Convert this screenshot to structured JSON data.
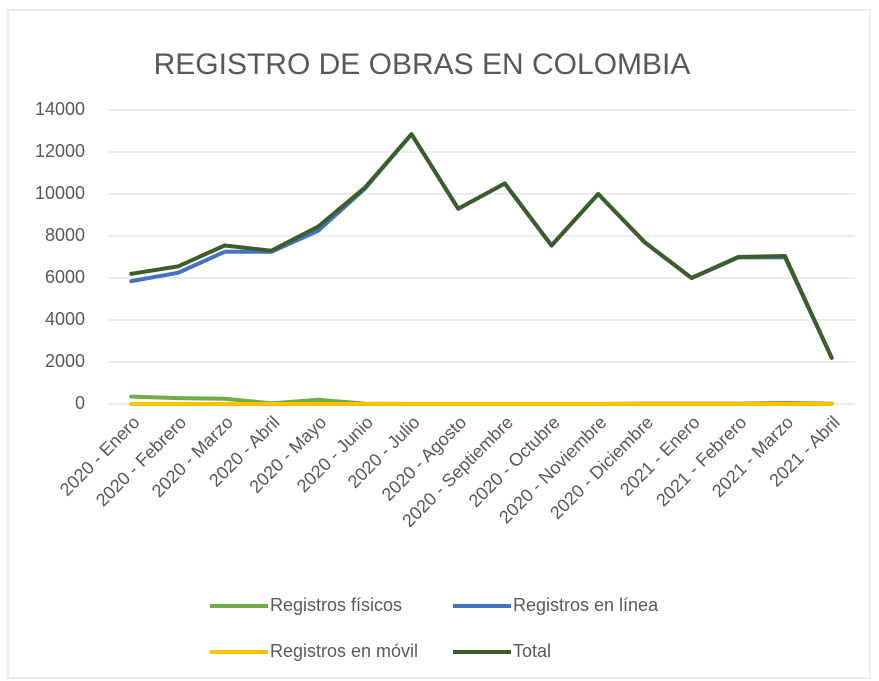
{
  "chart_data": {
    "type": "line",
    "title": "REGISTRO DE OBRAS EN COLOMBIA",
    "categories": [
      "2020 - Enero",
      "2020 - Febrero",
      "2020 - Marzo",
      "2020 - Abril",
      "2020 - Mayo",
      "2020 - Junio",
      "2020 - Julio",
      "2020 - Agosto",
      "2020 - Septiembre",
      "2020 - Octubre",
      "2020 - Noviembre",
      "2020 - Diciembre",
      "2021 - Enero",
      "2021 - Febrero",
      "2021 - Marzo",
      "2021 - Abril"
    ],
    "series": [
      {
        "name": "Registros físicos",
        "color": "#70ad47",
        "values": [
          350,
          280,
          250,
          30,
          200,
          20,
          0,
          0,
          0,
          0,
          0,
          20,
          20,
          20,
          50,
          20
        ]
      },
      {
        "name": "Registros en línea",
        "color": "#4472c4",
        "values": [
          5850,
          6250,
          7250,
          7250,
          8250,
          10250,
          12850,
          9300,
          10500,
          7550,
          10000,
          7680,
          6000,
          6980,
          6980,
          2200
        ]
      },
      {
        "name": "Registros en móvil",
        "color": "#ffc000",
        "values": [
          0,
          0,
          0,
          0,
          0,
          0,
          0,
          0,
          0,
          0,
          0,
          0,
          0,
          0,
          0,
          0
        ]
      },
      {
        "name": "Total",
        "color": "#3b5e2b",
        "values": [
          6200,
          6550,
          7550,
          7300,
          8450,
          10300,
          12850,
          9300,
          10500,
          7550,
          10000,
          7700,
          6000,
          7000,
          7050,
          2200
        ]
      }
    ],
    "ylim": [
      0,
      14000
    ],
    "yticks": [
      0,
      2000,
      4000,
      6000,
      8000,
      10000,
      12000,
      14000
    ],
    "grid": true,
    "legend": "bottom"
  }
}
